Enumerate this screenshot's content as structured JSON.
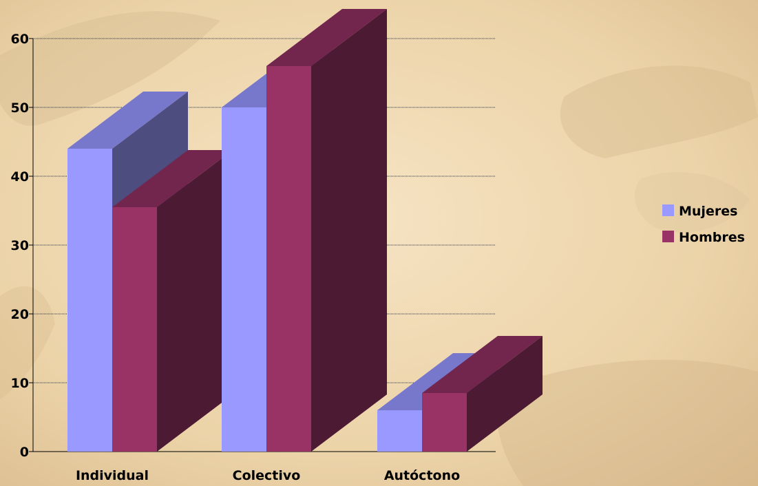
{
  "chart_data": {
    "type": "bar",
    "categories": [
      "Individual",
      "Colectivo",
      "Autóctono"
    ],
    "series": [
      {
        "name": "Mujeres",
        "values": [
          44,
          50,
          6
        ],
        "color": "#9999ff",
        "top_color": "#7777cc",
        "side_color": "#4d4d80"
      },
      {
        "name": "Hombres",
        "values": [
          35.5,
          56,
          8.5
        ],
        "color": "#993366",
        "top_color": "#73264d",
        "side_color": "#4d1a33"
      }
    ],
    "ylim": [
      0,
      60
    ],
    "yticks": [
      "0",
      "10",
      "20",
      "30",
      "40",
      "50",
      "60"
    ],
    "grid": true,
    "legend_position": "right",
    "three_d": true,
    "background": "warm beige textured"
  }
}
